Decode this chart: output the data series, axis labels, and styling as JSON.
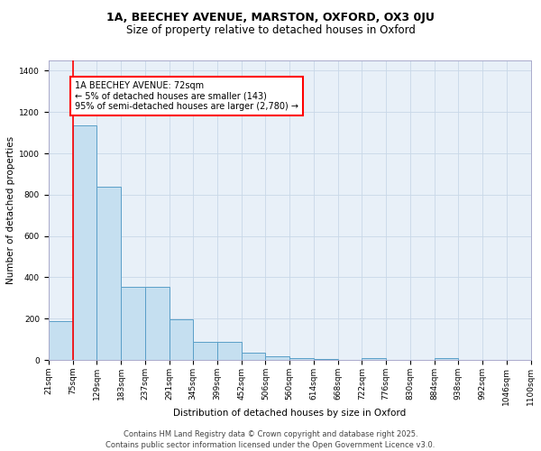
{
  "title_line1": "1A, BEECHEY AVENUE, MARSTON, OXFORD, OX3 0JU",
  "title_line2": "Size of property relative to detached houses in Oxford",
  "xlabel": "Distribution of detached houses by size in Oxford",
  "ylabel": "Number of detached properties",
  "bins": [
    "21sqm",
    "75sqm",
    "129sqm",
    "183sqm",
    "237sqm",
    "291sqm",
    "345sqm",
    "399sqm",
    "452sqm",
    "506sqm",
    "560sqm",
    "614sqm",
    "668sqm",
    "722sqm",
    "776sqm",
    "830sqm",
    "884sqm",
    "938sqm",
    "992sqm",
    "1046sqm",
    "1100sqm"
  ],
  "values": [
    190,
    1135,
    840,
    355,
    355,
    195,
    90,
    90,
    35,
    20,
    10,
    5,
    0,
    10,
    0,
    0,
    10,
    0,
    0,
    0
  ],
  "bar_color": "#c5dff0",
  "bar_edge_color": "#5a9fc8",
  "red_line_x": 1,
  "annotation_text": "1A BEECHEY AVENUE: 72sqm\n← 5% of detached houses are smaller (143)\n95% of semi-detached houses are larger (2,780) →",
  "annotation_box_color": "white",
  "annotation_box_edge_color": "red",
  "ylim": [
    0,
    1450
  ],
  "yticks": [
    0,
    200,
    400,
    600,
    800,
    1000,
    1200,
    1400
  ],
  "grid_color": "#c8d8e8",
  "bg_color": "#e8f0f8",
  "footer_line1": "Contains HM Land Registry data © Crown copyright and database right 2025.",
  "footer_line2": "Contains public sector information licensed under the Open Government Licence v3.0.",
  "title_fontsize": 9,
  "subtitle_fontsize": 8.5,
  "axis_label_fontsize": 7.5,
  "tick_fontsize": 6.5,
  "annotation_fontsize": 7,
  "footer_fontsize": 6
}
